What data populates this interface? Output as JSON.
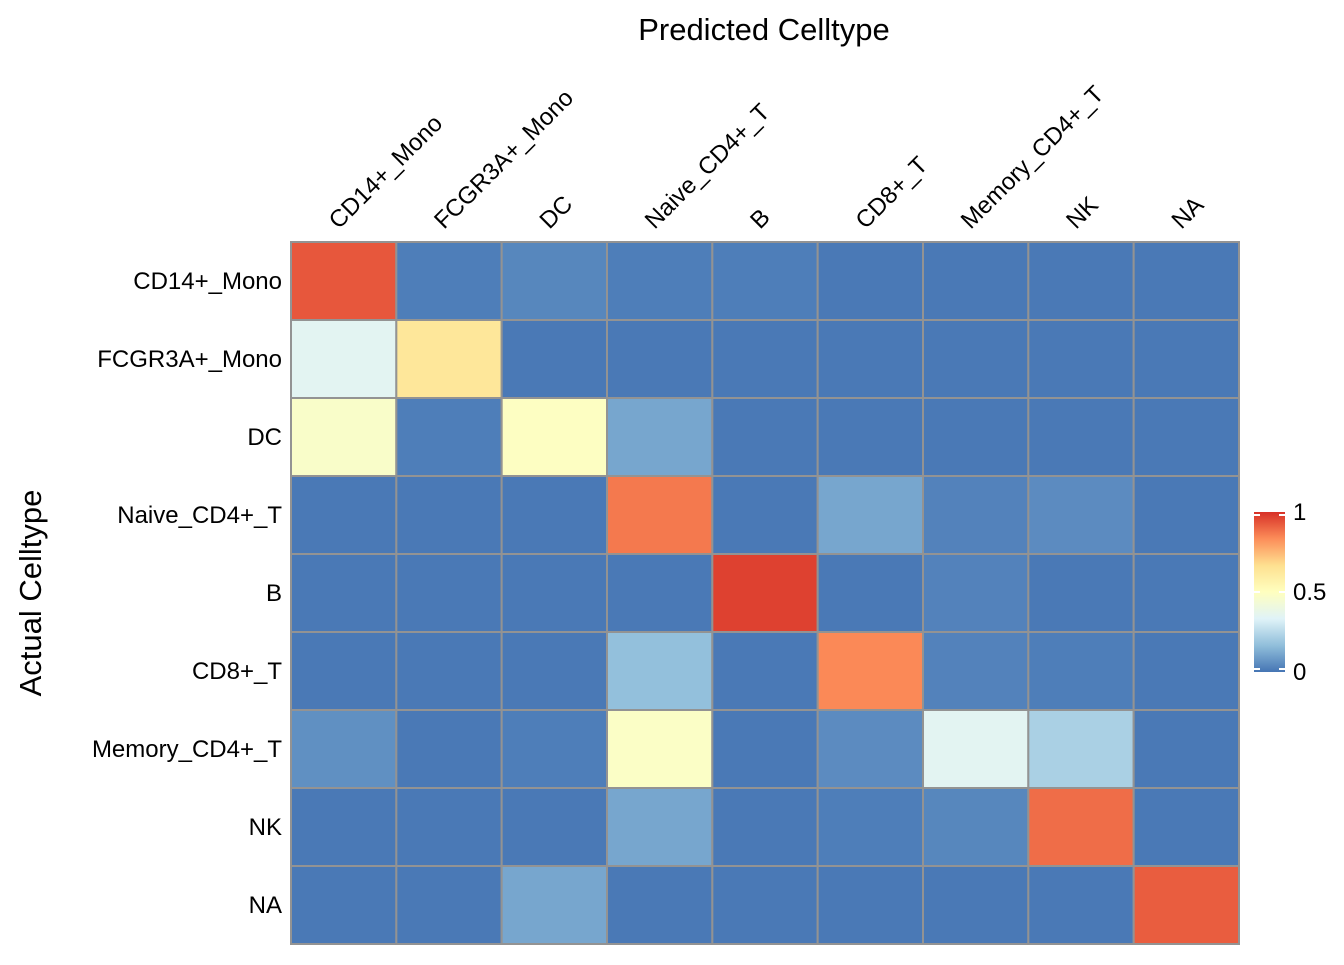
{
  "chart_data": {
    "type": "heatmap",
    "xlabel": "Predicted Celltype",
    "ylabel": "Actual Celltype",
    "x_categories": [
      "CD14+_Mono",
      "FCGR3A+_Mono",
      "DC",
      "Naive_CD4+_T",
      "B",
      "CD8+_T",
      "Memory_CD4+_T",
      "NK",
      "NA"
    ],
    "y_categories": [
      "CD14+_Mono",
      "FCGR3A+_Mono",
      "DC",
      "Naive_CD4+_T",
      "B",
      "CD8+_T",
      "Memory_CD4+_T",
      "NK",
      "NA"
    ],
    "values": [
      [
        0.93,
        0.02,
        0.04,
        0.02,
        0.02,
        0.01,
        0.01,
        0.01,
        0.01
      ],
      [
        0.35,
        0.63,
        0.01,
        0.01,
        0.01,
        0.01,
        0.01,
        0.01,
        0.01
      ],
      [
        0.47,
        0.02,
        0.49,
        0.11,
        0.01,
        0.01,
        0.01,
        0.01,
        0.01
      ],
      [
        0.01,
        0.01,
        0.01,
        0.87,
        0.01,
        0.11,
        0.03,
        0.05,
        0.01
      ],
      [
        0.01,
        0.01,
        0.01,
        0.01,
        0.97,
        0.01,
        0.03,
        0.01,
        0.01
      ],
      [
        0.01,
        0.01,
        0.01,
        0.17,
        0.01,
        0.84,
        0.03,
        0.02,
        0.01
      ],
      [
        0.06,
        0.01,
        0.02,
        0.48,
        0.01,
        0.05,
        0.35,
        0.22,
        0.01
      ],
      [
        0.01,
        0.01,
        0.01,
        0.11,
        0.01,
        0.02,
        0.04,
        0.89,
        0.01
      ],
      [
        0.01,
        0.01,
        0.11,
        0.01,
        0.01,
        0.01,
        0.01,
        0.01,
        0.92
      ]
    ],
    "color_range": [
      0,
      1
    ],
    "legend": {
      "ticks": [
        1,
        0.5,
        0
      ],
      "tick_labels": [
        "1",
        "0.5",
        "0"
      ],
      "placement": "right"
    },
    "colors": [
      "#4575B4",
      "#91BFDB",
      "#E0F3F8",
      "#FFFFBF",
      "#FEE090",
      "#FC8D59",
      "#D73027"
    ],
    "cell_border_color": "#939393",
    "grid": false
  }
}
